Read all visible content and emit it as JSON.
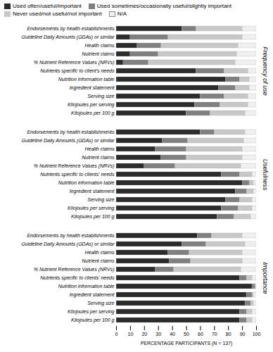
{
  "chart_data": [
    {
      "type": "bar",
      "title": "Frequency of use",
      "orientation": "horizontal",
      "stacked": true,
      "legend": "upper left",
      "tick_labels": "y",
      "categories": [
        "Endorsements by health establishments",
        "Guideline Daily Amounts (GDAs) or similar",
        "Health claims",
        "Nutrient claims",
        "% Nutrient Reference Values (NRVs)",
        "Nutrients specific to client's needs",
        "Nutrition information table",
        "Ingredient statement",
        "Serving size",
        "Kilojoules per serving",
        "Kilojoules per 100 g"
      ],
      "series": [
        {
          "name": "Used often/useful/important",
          "color": "#2b2b2b",
          "values": [
            47,
            10,
            15,
            10,
            5,
            57,
            78,
            73,
            60,
            56,
            50
          ]
        },
        {
          "name": "Used sometimes/occasionally useful/slightly important",
          "color": "#808080",
          "values": [
            10,
            27,
            17,
            20,
            18,
            20,
            10,
            12,
            17,
            18,
            17
          ]
        },
        {
          "name": "Never used/not useful/not important",
          "color": "#c8c8c8",
          "values": [
            33,
            53,
            55,
            56,
            62,
            17,
            7,
            10,
            17,
            20,
            25
          ]
        },
        {
          "name": "N/A",
          "color": "#f0f0f0",
          "values": [
            10,
            10,
            13,
            14,
            15,
            6,
            5,
            5,
            6,
            6,
            8
          ]
        }
      ],
      "xlim": [
        0,
        100
      ]
    },
    {
      "type": "bar",
      "title": "Usefulness",
      "orientation": "horizontal",
      "stacked": true,
      "tick_labels": "y",
      "categories": [
        "Endorsements by health establishments",
        "Guideline Daily Amounts (GDAs) or similar",
        "Health claims",
        "Nutrient claims",
        "% Nutrient Reference Values (NRVs)",
        "Nutrients specific to clients' needs",
        "Nutrition information table",
        "Ingredient statement",
        "Serving size",
        "Kilojoules per serving",
        "Kilojoules per 100 g"
      ],
      "series": [
        {
          "name": "Used often/useful/important",
          "color": "#2b2b2b",
          "values": [
            60,
            33,
            28,
            32,
            20,
            75,
            90,
            85,
            78,
            75,
            72
          ]
        },
        {
          "name": "Used sometimes/occasionally useful/slightly important",
          "color": "#808080",
          "values": [
            10,
            18,
            22,
            18,
            22,
            13,
            5,
            8,
            10,
            12,
            12
          ]
        },
        {
          "name": "Never used/not useful/not important",
          "color": "#c8c8c8",
          "values": [
            22,
            40,
            40,
            40,
            47,
            9,
            3,
            5,
            9,
            10,
            12
          ]
        },
        {
          "name": "N/A",
          "color": "#f0f0f0",
          "values": [
            8,
            9,
            10,
            10,
            11,
            3,
            2,
            2,
            3,
            3,
            4
          ]
        }
      ],
      "xlim": [
        0,
        100
      ]
    },
    {
      "type": "bar",
      "title": "Importance",
      "orientation": "horizontal",
      "stacked": true,
      "xlabel": "PERCENTAGE PARTICIPANTS (N = 137)",
      "categories": [
        "Endorsements by health establishments",
        "Guideline Daily Amounts (GDAs) or similar",
        "Health claims",
        "Nutrient claims",
        "% Nutrient Reference Values (NRVs)",
        "Nutrients specific to clients' needs",
        "Nutrition information table",
        "Ingredient statement",
        "Serving size",
        "Kilojoules per serving",
        "Kilojoules per 100 g"
      ],
      "series": [
        {
          "name": "Used often/useful/important",
          "color": "#2b2b2b",
          "values": [
            58,
            47,
            37,
            38,
            28,
            88,
            97,
            93,
            92,
            88,
            88
          ]
        },
        {
          "name": "Used sometimes/occasionally useful/slightly important",
          "color": "#808080",
          "values": [
            10,
            17,
            15,
            15,
            13,
            5,
            2,
            4,
            4,
            5,
            5
          ]
        },
        {
          "name": "Never used/not useful/not important",
          "color": "#c8c8c8",
          "values": [
            22,
            28,
            38,
            37,
            48,
            4,
            1,
            1,
            2,
            4,
            4
          ]
        },
        {
          "name": "N/A",
          "color": "#f0f0f0",
          "values": [
            10,
            8,
            10,
            10,
            11,
            3,
            0,
            2,
            2,
            3,
            3
          ]
        }
      ],
      "xlim": [
        0,
        100
      ],
      "xticks": [
        0,
        10,
        20,
        30,
        40,
        50,
        60,
        70,
        80,
        90,
        100
      ]
    }
  ]
}
